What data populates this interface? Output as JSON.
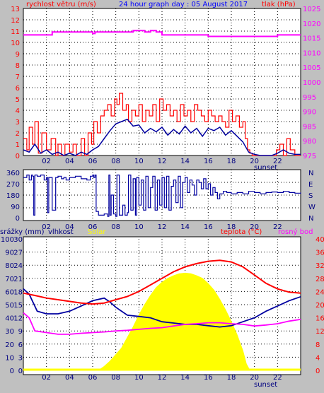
{
  "colors": {
    "background": "#c0c0c0",
    "plot": "#ffffff",
    "wind": "#ff0000",
    "gust_avg": "#0000a0",
    "pressure": "#ff00ff",
    "direction": "#0000a0",
    "temperature": "#ff0000",
    "dewpoint": "#ff00ff",
    "humidity": "#0000a0",
    "solar": "#ffff00",
    "title": "#0000ff",
    "axis_text": "#000080"
  },
  "chart_data": [
    {
      "type": "line",
      "title": "24 hour graph day : 05 August 2017",
      "ylabel": "rychlost větru (m/s)",
      "ylabel2": "tlak (hPa)",
      "ylim": [
        0,
        13
      ],
      "ylim2": [
        975,
        1025
      ],
      "yticks": [
        "0",
        "1",
        "2",
        "3",
        "4",
        "5",
        "6",
        "7",
        "8",
        "9",
        "10",
        "11",
        "12",
        "13"
      ],
      "yticks2": [
        "975",
        "980",
        "985",
        "990",
        "995",
        "1000",
        "1005",
        "1010",
        "1015",
        "1020",
        "1025"
      ],
      "x_ticks": [
        "02",
        "04",
        "06",
        "08",
        "10",
        "12",
        "14",
        "16",
        "18",
        "20",
        "22"
      ],
      "x_marker": "sunset",
      "grid": true,
      "series": [
        {
          "role": "wind_gust",
          "x": [
            0,
            0.3,
            0.5,
            0.8,
            1,
            1.3,
            1.6,
            2,
            2.4,
            2.8,
            3,
            3.3,
            3.6,
            4,
            4.3,
            4.6,
            5,
            5.3,
            5.6,
            5.9,
            6.1,
            6.4,
            6.7,
            7,
            7.3,
            7.6,
            7.9,
            8.1,
            8.3,
            8.6,
            8.9,
            9.1,
            9.4,
            9.7,
            10,
            10.3,
            10.6,
            10.9,
            11.2,
            11.5,
            11.8,
            12.1,
            12.4,
            12.7,
            13,
            13.3,
            13.6,
            13.9,
            14.2,
            14.5,
            14.8,
            15.1,
            15.4,
            15.7,
            16,
            16.3,
            16.6,
            16.9,
            17.2,
            17.5,
            17.8,
            18.1,
            18.4,
            18.7,
            19,
            19.2,
            19.4,
            19.6,
            19.8,
            20,
            20.3,
            20.6,
            21,
            21.3,
            21.6,
            21.9,
            22.2,
            22.5,
            22.8,
            23.1,
            23.5,
            23.8,
            24
          ],
          "y": [
            1.5,
            0.5,
            2.5,
            1,
            3,
            0.2,
            2,
            0.5,
            1.5,
            0,
            1,
            0,
            1,
            0.3,
            1,
            0,
            1.5,
            0,
            2,
            1,
            3,
            2,
            3.5,
            4,
            4.5,
            3.5,
            5,
            4.5,
            5.5,
            4,
            4.5,
            3,
            4,
            3.5,
            4.5,
            3,
            4,
            3.5,
            4.5,
            3,
            5,
            4,
            4.5,
            3.5,
            4,
            3,
            4.5,
            3.5,
            4,
            3,
            4.5,
            4,
            3.5,
            3,
            4,
            3.5,
            3,
            3.5,
            3,
            2.5,
            4,
            3,
            3.5,
            2.5,
            3,
            1.5,
            0.5,
            0.2,
            0,
            0,
            0,
            0,
            0,
            0,
            0,
            0.5,
            1,
            0,
            1.5,
            0.5,
            0,
            0,
            0
          ]
        },
        {
          "role": "wind_average",
          "x": [
            0,
            0.5,
            1,
            1.5,
            2,
            2.5,
            3,
            3.5,
            4,
            4.5,
            5,
            5.5,
            6,
            6.5,
            7,
            7.5,
            8,
            8.5,
            9,
            9.5,
            10,
            10.5,
            11,
            11.5,
            12,
            12.5,
            13,
            13.5,
            14,
            14.5,
            15,
            15.5,
            16,
            16.5,
            17,
            17.5,
            18,
            18.5,
            19,
            19.5,
            20,
            20.5,
            21,
            21.5,
            22,
            22.5,
            23,
            23.5,
            24
          ],
          "y": [
            0.5,
            0.3,
            1,
            0.2,
            0.5,
            0.1,
            0.3,
            0,
            0.2,
            0,
            0.3,
            0.1,
            0.5,
            0.8,
            1.5,
            2.2,
            2.8,
            3,
            3.2,
            2.6,
            2.7,
            2,
            2.4,
            2.1,
            2.5,
            1.8,
            2.3,
            1.9,
            2.6,
            2,
            2.4,
            1.7,
            2.4,
            2.2,
            2.5,
            1.8,
            2.2,
            1.7,
            1.2,
            0.3,
            0.1,
            0,
            0,
            0,
            0.2,
            0.5,
            0.2,
            0.1,
            0.1
          ]
        },
        {
          "role": "pressure",
          "x": [
            0,
            2.5,
            2.5,
            6,
            6,
            6.2,
            6.2,
            9.5,
            9.5,
            10.5,
            10.5,
            11,
            11,
            11.5,
            11.5,
            12,
            12,
            16,
            16,
            22,
            22,
            24
          ],
          "y": [
            1016,
            1016,
            1017,
            1017,
            1016.5,
            1016.5,
            1017,
            1017,
            1017.5,
            1017.5,
            1017,
            1017,
            1017.5,
            1017.5,
            1017,
            1017,
            1016,
            1016,
            1015.5,
            1015.5,
            1016,
            1016
          ]
        }
      ]
    },
    {
      "type": "line",
      "ylim": [
        0,
        360
      ],
      "yticks": [
        "0",
        "90",
        "180",
        "270",
        "360"
      ],
      "compass": [
        "N",
        "W",
        "S",
        "E",
        "N"
      ],
      "x_ticks": [
        "02",
        "04",
        "06",
        "08",
        "10",
        "12",
        "14",
        "16",
        "18",
        "20",
        "22"
      ],
      "grid": true,
      "series": [
        {
          "role": "wind_direction",
          "x": [
            0,
            0.3,
            0.5,
            0.7,
            0.8,
            0.9,
            1,
            1.2,
            1.5,
            1.8,
            2,
            2.1,
            2.2,
            2.5,
            2.8,
            3,
            3.3,
            3.5,
            3.7,
            4,
            4.5,
            5,
            5.5,
            5.8,
            6,
            6.1,
            6.2,
            6.3,
            6.5,
            7,
            7.3,
            7.4,
            7.5,
            7.6,
            7.8,
            8,
            8.1,
            8.3,
            8.6,
            8.8,
            9,
            9.1,
            9.3,
            9.5,
            9.7,
            9.8,
            10,
            10.2,
            10.4,
            10.6,
            10.8,
            11,
            11.2,
            11.4,
            11.6,
            11.8,
            12,
            12.2,
            12.4,
            12.6,
            12.8,
            13,
            13.2,
            13.4,
            13.6,
            13.8,
            14,
            14.2,
            14.4,
            14.6,
            14.8,
            15,
            15.2,
            15.4,
            15.6,
            15.8,
            16,
            16.2,
            16.4,
            16.6,
            16.8,
            17,
            17.3,
            17.6,
            18,
            18.5,
            19,
            19.5,
            20,
            20.5,
            21,
            21.5,
            22,
            22.5,
            23,
            23.5,
            24
          ],
          "y": [
            320,
            340,
            300,
            340,
            330,
            20,
            340,
            330,
            340,
            300,
            320,
            40,
            320,
            60,
            320,
            330,
            310,
            320,
            300,
            320,
            330,
            310,
            300,
            330,
            340,
            320,
            340,
            50,
            20,
            30,
            10,
            340,
            20,
            180,
            30,
            10,
            340,
            20,
            100,
            20,
            40,
            340,
            60,
            310,
            20,
            320,
            100,
            300,
            60,
            330,
            80,
            240,
            330,
            60,
            300,
            100,
            320,
            80,
            330,
            60,
            250,
            300,
            120,
            330,
            80,
            280,
            320,
            200,
            300,
            260,
            180,
            300,
            280,
            230,
            310,
            230,
            270,
            180,
            240,
            200,
            150,
            190,
            210,
            200,
            190,
            200,
            190,
            210,
            200,
            190,
            200,
            205,
            200,
            210,
            200,
            195,
            200
          ]
        }
      ]
    },
    {
      "type": "line",
      "ylabel_left": "srážky (mm)",
      "label_humidity": "vlhkost",
      "label_solar": "Solar",
      "label_temp": "teplota (°C)",
      "label_dew": "rosný bod",
      "ylim": [
        0,
        100
      ],
      "yticks_left": [
        "0",
        "10",
        "20",
        "30",
        "40",
        "50",
        "60",
        "70",
        "80",
        "90",
        "100"
      ],
      "yticks_rain": [
        "0",
        "3",
        "6",
        "9",
        "12",
        "15",
        "18",
        "21",
        "24",
        "27",
        "30"
      ],
      "yticks_right": [
        "0",
        "4",
        "8",
        "12",
        "16",
        "20",
        "24",
        "28",
        "32",
        "36",
        "40"
      ],
      "x_ticks": [
        "02",
        "04",
        "06",
        "08",
        "10",
        "12",
        "14",
        "16",
        "18",
        "20",
        "22"
      ],
      "x_marker": "sunset",
      "grid": true,
      "series": [
        {
          "role": "temperature",
          "x": [
            0,
            1,
            2,
            3,
            4,
            5,
            6,
            7,
            8,
            9,
            10,
            11,
            12,
            13,
            14,
            15,
            16,
            17,
            18,
            19,
            20,
            21,
            22,
            23,
            24
          ],
          "y": [
            23.5,
            22.8,
            22,
            21.5,
            21,
            20.5,
            20.2,
            20.5,
            21.5,
            22.5,
            24,
            26,
            28,
            30,
            31.5,
            32.5,
            33.2,
            33.5,
            33,
            31.5,
            29,
            26.5,
            24.8,
            23.8,
            23.5
          ]
        },
        {
          "role": "dewpoint",
          "x": [
            0,
            0.5,
            1,
            2,
            3,
            4,
            5,
            6,
            7,
            8,
            9,
            10,
            11,
            12,
            13,
            14,
            15,
            16,
            17,
            18,
            19,
            20,
            21,
            22,
            23,
            24
          ],
          "y": [
            17.5,
            16,
            12,
            11.5,
            11,
            11,
            11.3,
            11.5,
            11.7,
            12,
            12.2,
            12.5,
            12.8,
            13,
            13.5,
            14,
            14.2,
            14.5,
            14.5,
            14.2,
            14,
            13.5,
            13.8,
            14.2,
            15,
            15.5
          ]
        },
        {
          "role": "humidity",
          "x": [
            0,
            0.5,
            1.2,
            2,
            3,
            4,
            5,
            6,
            7,
            7.5,
            8,
            9,
            10,
            11,
            12,
            13,
            14,
            15,
            16,
            17,
            18,
            19,
            20,
            21,
            22,
            23,
            24
          ],
          "y": [
            62,
            58,
            45,
            43,
            43,
            45,
            49,
            53,
            55,
            52,
            48,
            42,
            41,
            40,
            37,
            36,
            35,
            35,
            34,
            33,
            34,
            37,
            40,
            45,
            49,
            53,
            56
          ]
        },
        {
          "role": "solar",
          "x": [
            0,
            6.5,
            7,
            7.5,
            8,
            8.5,
            9,
            9.5,
            10,
            10.5,
            11,
            11.5,
            12,
            12.5,
            13,
            13.5,
            14,
            14.5,
            15,
            15.5,
            16,
            16.5,
            17,
            17.5,
            18,
            18.5,
            19,
            19.3,
            19.6,
            24
          ],
          "y": [
            0,
            0,
            3,
            7,
            12,
            17,
            25,
            33,
            42,
            50,
            57,
            63,
            67,
            70,
            72,
            73.5,
            74,
            73.5,
            72,
            70,
            66,
            61,
            54,
            46,
            37,
            27,
            15,
            5,
            0,
            0
          ]
        },
        {
          "role": "rain",
          "x": [
            0,
            24
          ],
          "y": [
            0,
            0
          ]
        }
      ]
    }
  ]
}
